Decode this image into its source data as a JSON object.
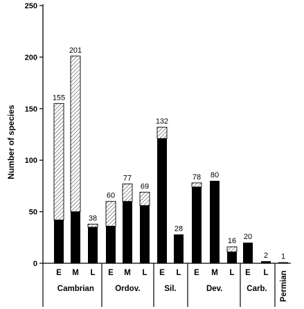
{
  "chart_data": {
    "type": "bar",
    "stacked": true,
    "ylabel": "Number of species",
    "ylim": [
      0,
      250
    ],
    "yticks": [
      0,
      50,
      100,
      150,
      200,
      250
    ],
    "grid": false,
    "colors": {
      "solid": "#000000",
      "hatch": "#555555",
      "hatch_bg": "#ffffff"
    },
    "periods": [
      {
        "name": "Cambrian",
        "rotated": false,
        "bars": [
          {
            "label": "E",
            "solid": 42,
            "hatched": 113,
            "total": "155"
          },
          {
            "label": "M",
            "solid": 50,
            "hatched": 151,
            "total": "201"
          },
          {
            "label": "L",
            "solid": 35,
            "hatched": 3,
            "total": "38"
          }
        ]
      },
      {
        "name": "Ordov.",
        "rotated": false,
        "bars": [
          {
            "label": "E",
            "solid": 36,
            "hatched": 24,
            "total": "60"
          },
          {
            "label": "M",
            "solid": 60,
            "hatched": 17,
            "total": "77"
          },
          {
            "label": "L",
            "solid": 56,
            "hatched": 13,
            "total": "69"
          }
        ]
      },
      {
        "name": "Sil.",
        "rotated": false,
        "bars": [
          {
            "label": "E",
            "solid": 121,
            "hatched": 11,
            "total": "132"
          },
          {
            "label": "L",
            "solid": 28,
            "hatched": 0,
            "total": "28"
          }
        ]
      },
      {
        "name": "Dev.",
        "rotated": false,
        "bars": [
          {
            "label": "E",
            "solid": 74,
            "hatched": 4,
            "total": "78"
          },
          {
            "label": "M",
            "solid": 80,
            "hatched": 0,
            "total": "80"
          },
          {
            "label": "L",
            "solid": 11,
            "hatched": 5,
            "total": "16"
          }
        ]
      },
      {
        "name": "Carb.",
        "rotated": false,
        "bars": [
          {
            "label": "E",
            "solid": 20,
            "hatched": 0,
            "total": "20"
          },
          {
            "label": "L",
            "solid": 2,
            "hatched": 0,
            "total": "2"
          }
        ]
      },
      {
        "name": "Permian",
        "rotated": true,
        "bars": [
          {
            "label": "",
            "solid": 1,
            "hatched": 0,
            "total": "1"
          }
        ]
      }
    ]
  }
}
